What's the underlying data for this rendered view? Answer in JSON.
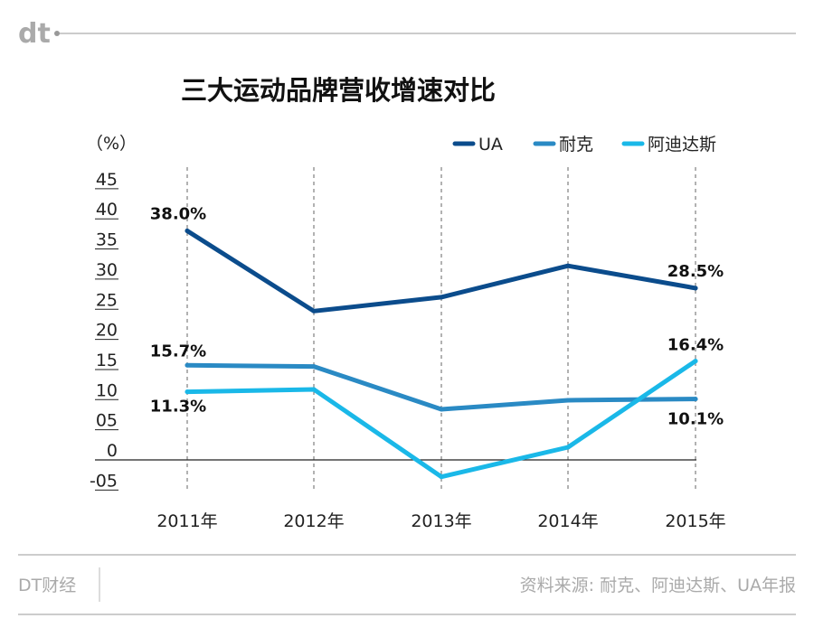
{
  "brand": {
    "logo": "dt",
    "footer_name": "DT财经"
  },
  "source": "资料来源: 耐克、阿迪达斯、UA年报",
  "chart_data": {
    "type": "line",
    "title": "三大运动品牌营收增速对比",
    "ylabel": "（%）",
    "categories": [
      "2011年",
      "2012年",
      "2013年",
      "2014年",
      "2015年"
    ],
    "ylim": [
      -5,
      45
    ],
    "yticks": [
      45,
      40,
      35,
      30,
      25,
      20,
      15,
      10,
      5,
      0,
      -5
    ],
    "ytick_labels": [
      "45",
      "40",
      "35",
      "30",
      "25",
      "20",
      "15",
      "10",
      "05",
      "0",
      "-05"
    ],
    "grid": "vertical dashed",
    "legend_position": "top-right",
    "series": [
      {
        "name": "UA",
        "color": "#0b4c8c",
        "values": [
          38.0,
          24.7,
          27.0,
          32.2,
          28.5
        ],
        "labels": [
          "38.0%",
          "",
          "",
          "",
          "28.5%"
        ]
      },
      {
        "name": "耐克",
        "color": "#2a8ac4",
        "values": [
          15.7,
          15.5,
          8.4,
          9.9,
          10.1
        ],
        "labels": [
          "15.7%",
          "",
          "",
          "",
          "10.1%"
        ]
      },
      {
        "name": "阿迪达斯",
        "color": "#1ab8e8",
        "values": [
          11.3,
          11.7,
          -2.8,
          2.1,
          16.4
        ],
        "labels": [
          "11.3%",
          "",
          "",
          "",
          "16.4%"
        ]
      }
    ]
  }
}
